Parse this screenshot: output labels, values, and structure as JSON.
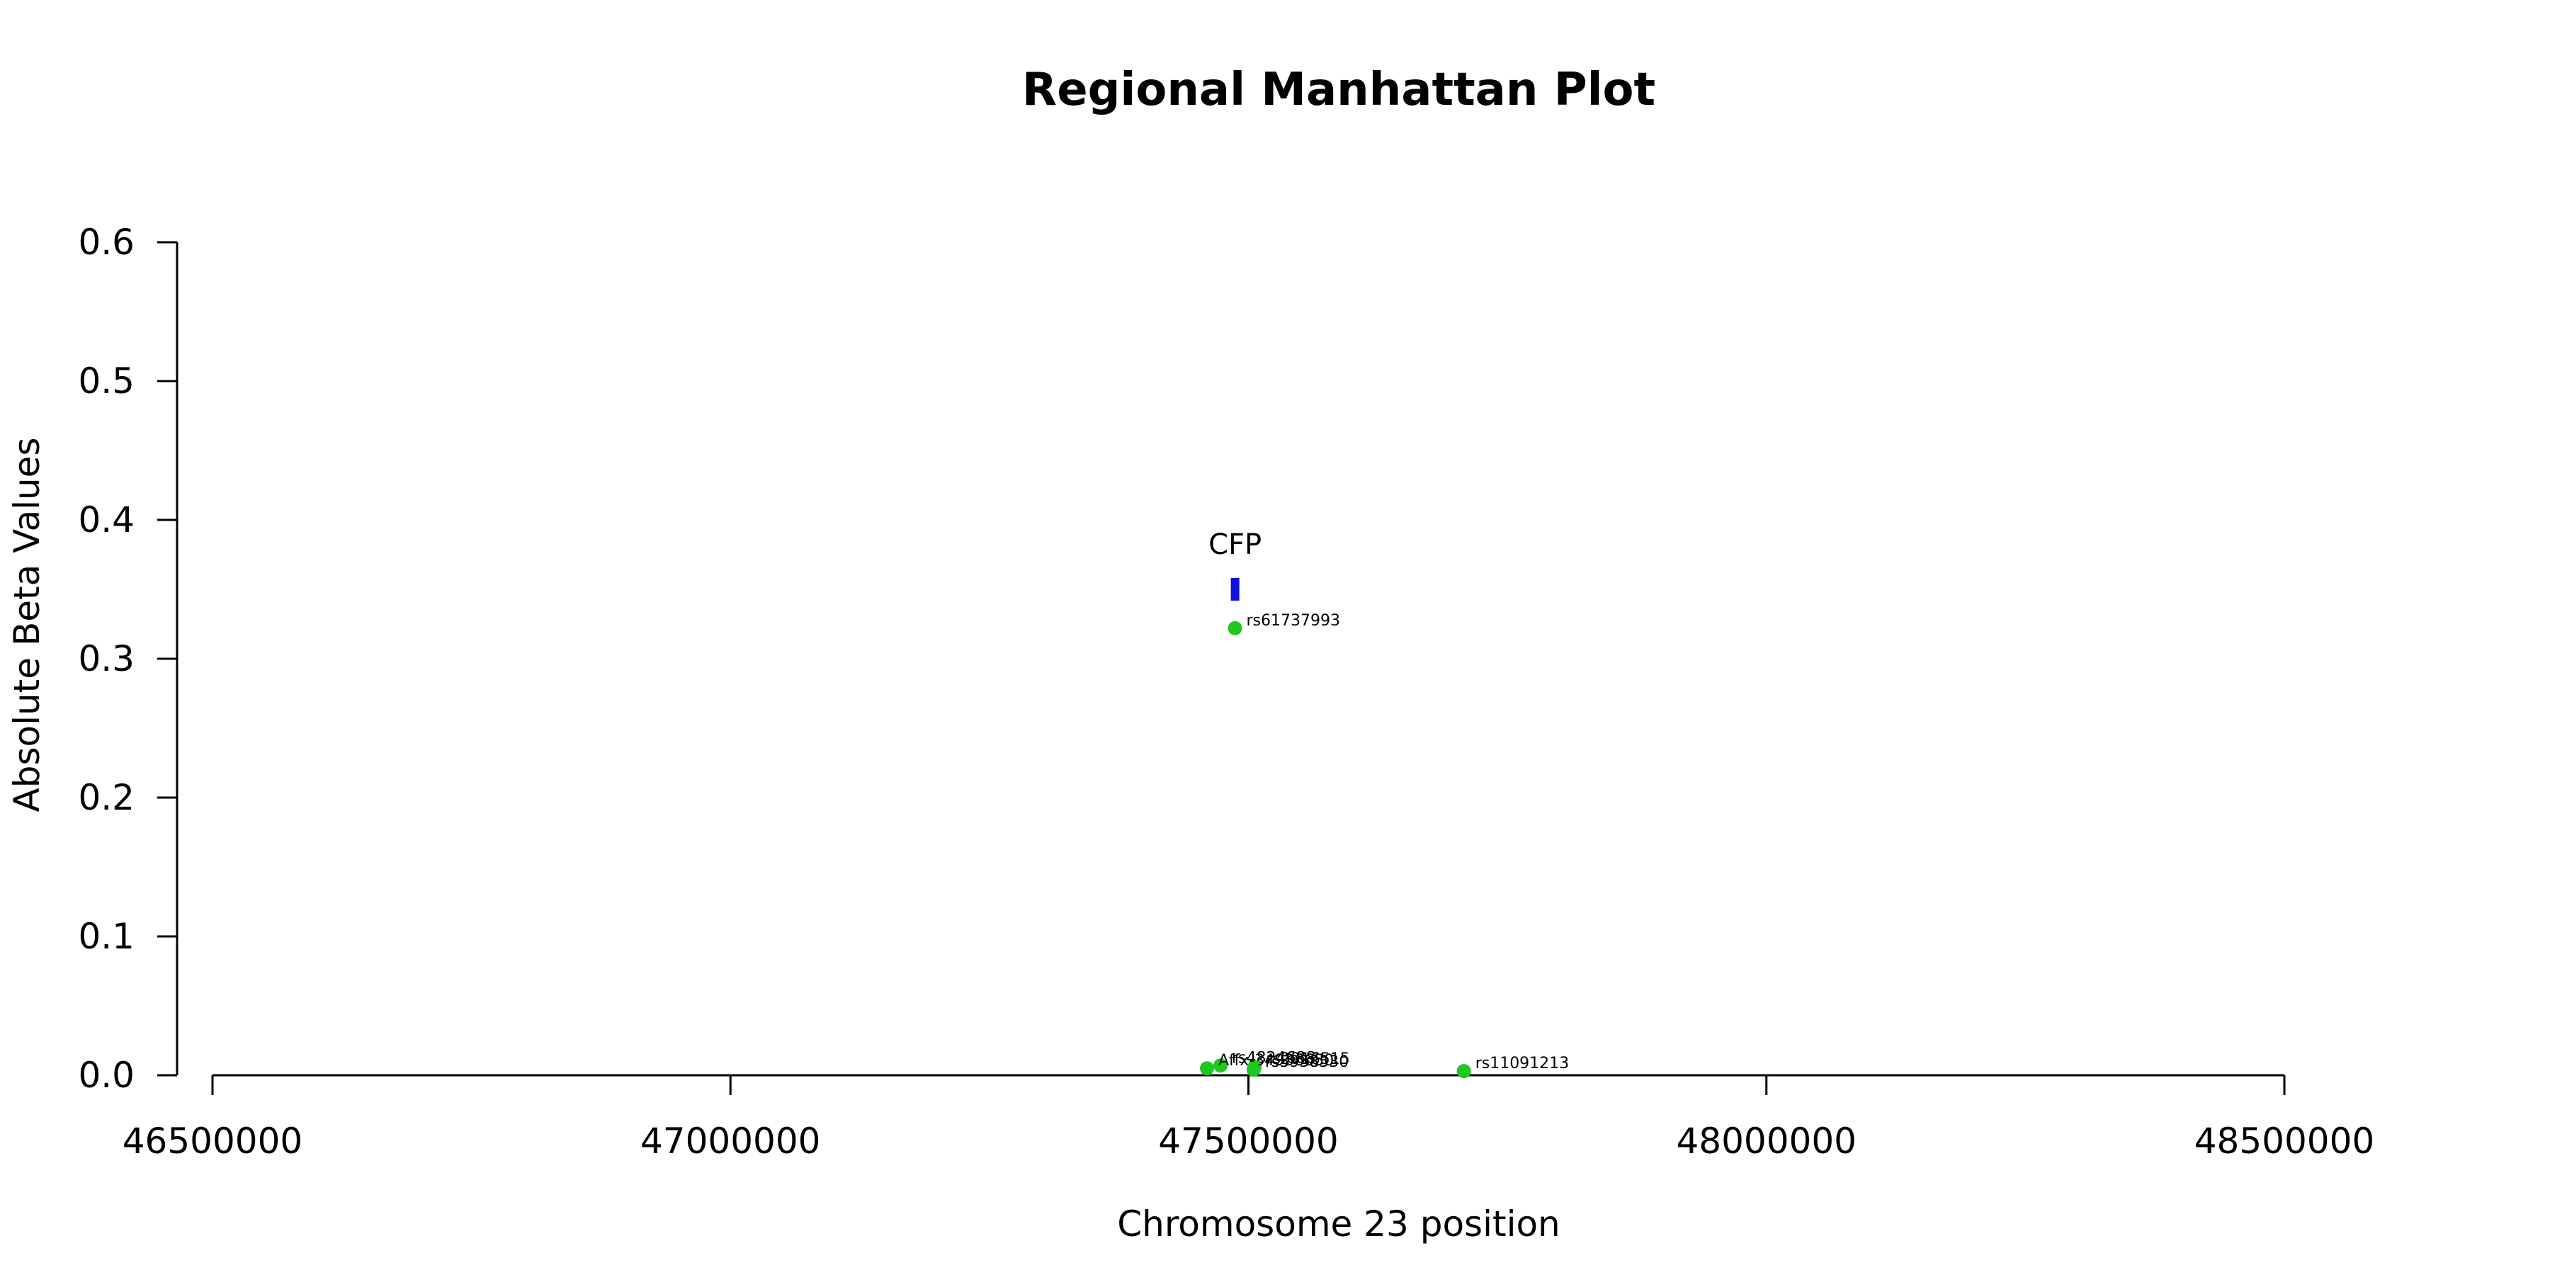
{
  "chart_data": {
    "type": "scatter",
    "title": "Regional Manhattan Plot",
    "xlabel": "Chromosome 23 position",
    "ylabel": "Absolute Beta Values",
    "xlim": [
      46500000,
      48500000
    ],
    "ylim": [
      0,
      0.6
    ],
    "x_ticks": [
      "46500000",
      "47000000",
      "47500000",
      "48000000",
      "48500000"
    ],
    "y_ticks": [
      "0.0",
      "0.1",
      "0.2",
      "0.3",
      "0.4",
      "0.5",
      "0.6"
    ],
    "grid": false,
    "point_color": "#1ec81e",
    "gene_color": "#1010e0",
    "genes": [
      {
        "name": "CFP",
        "start": 47483000,
        "end": 47490000,
        "y": 0.35
      }
    ],
    "points": [
      {
        "x": 47487000,
        "y": 0.322,
        "label": "rs61737993"
      },
      {
        "x": 47473000,
        "y": 0.007,
        "label": "rs4824688"
      },
      {
        "x": 47506000,
        "y": 0.006,
        "label": "rs2016515"
      },
      {
        "x": 47460000,
        "y": 0.005,
        "label": "Affx-34936650"
      },
      {
        "x": 47505000,
        "y": 0.004,
        "label": "rs5958530"
      },
      {
        "x": 47708000,
        "y": 0.003,
        "label": "rs11091213"
      }
    ]
  }
}
